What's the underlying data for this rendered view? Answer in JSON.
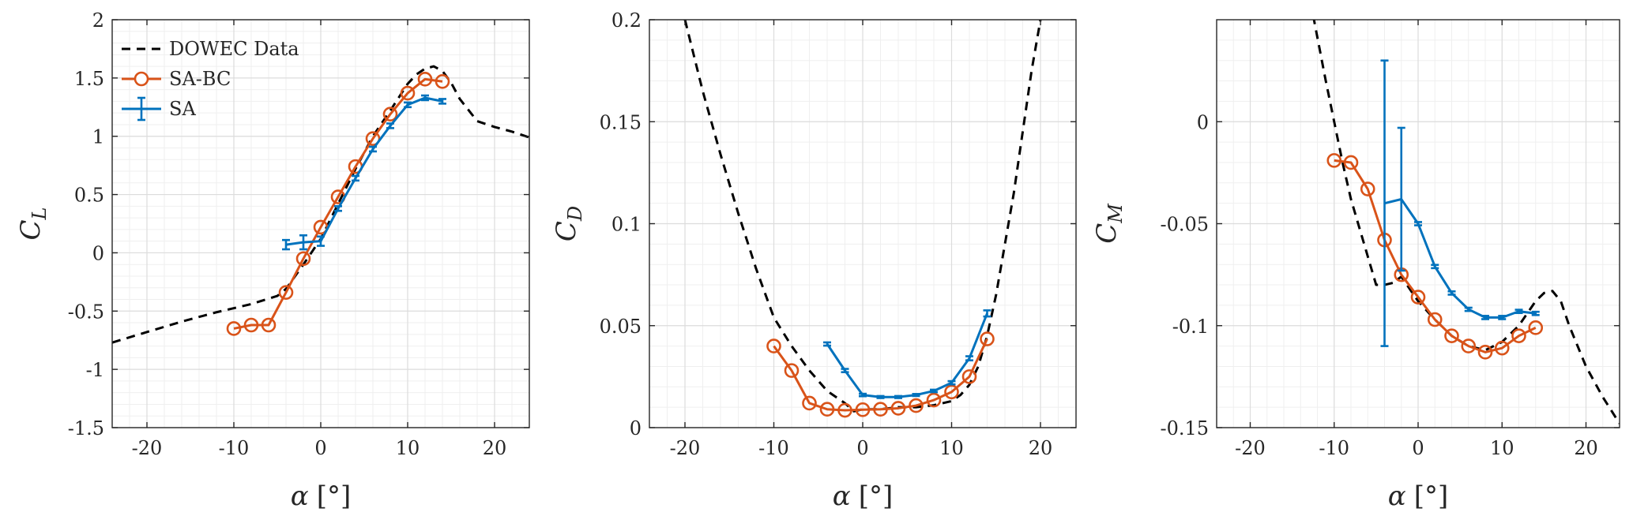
{
  "colors": {
    "dowec": "#000000",
    "sa_bc": "#D95319",
    "sa": "#0072BD",
    "grid_minor": "#efefef",
    "grid_major": "#dcdcdc",
    "axes": "#262626"
  },
  "legend": [
    {
      "name": "DOWEC Data",
      "style": "dashed",
      "color": "#000000"
    },
    {
      "name": "SA-BC",
      "style": "line-circle",
      "color": "#D95319"
    },
    {
      "name": "SA",
      "style": "line-errorbar",
      "color": "#0072BD"
    }
  ],
  "chart_data": [
    {
      "type": "line",
      "xlabel_main": "α",
      "xlabel_unit": "[°]",
      "ylabel_main": "C",
      "ylabel_sub": "L",
      "xlim": [
        -24,
        24
      ],
      "ylim": [
        -1.5,
        2
      ],
      "xticks": [
        -20,
        -10,
        0,
        10,
        20
      ],
      "yticks": [
        -1.5,
        -1,
        -0.5,
        0,
        0.5,
        1,
        1.5,
        2
      ],
      "xtick_labels": [
        "-20",
        "-10",
        "0",
        "10",
        "20"
      ],
      "ytick_labels": [
        "-1.5",
        "-1",
        "-0.5",
        "0",
        "0.5",
        "1",
        "1.5",
        "2"
      ],
      "xminor_step": 2,
      "yminor_step": 0.1,
      "grid": true,
      "legend_location": "top-left",
      "series": [
        {
          "name": "DOWEC Data",
          "style": "dashed",
          "x": [
            -24,
            -20,
            -16,
            -12,
            -8,
            -5,
            -4,
            -2,
            0,
            2,
            4,
            6,
            8,
            10,
            11,
            12,
            13,
            14,
            15,
            16,
            18,
            20,
            22,
            24
          ],
          "y": [
            -0.77,
            -0.68,
            -0.59,
            -0.51,
            -0.44,
            -0.37,
            -0.31,
            -0.1,
            0.12,
            0.42,
            0.72,
            1.0,
            1.22,
            1.45,
            1.53,
            1.58,
            1.6,
            1.56,
            1.46,
            1.32,
            1.13,
            1.08,
            1.04,
            0.99
          ]
        },
        {
          "name": "SA-BC",
          "style": "line-circle",
          "x": [
            -10,
            -8,
            -6,
            -4,
            -2,
            0,
            2,
            4,
            6,
            8,
            10,
            12,
            14
          ],
          "y": [
            -0.65,
            -0.62,
            -0.62,
            -0.34,
            -0.05,
            0.22,
            0.48,
            0.74,
            0.98,
            1.19,
            1.37,
            1.49,
            1.47
          ]
        },
        {
          "name": "SA",
          "style": "line-errorbar",
          "x": [
            -4,
            -2,
            0,
            2,
            4,
            6,
            8,
            10,
            12,
            14
          ],
          "y": [
            0.07,
            0.09,
            0.1,
            0.38,
            0.64,
            0.89,
            1.09,
            1.27,
            1.33,
            1.3
          ],
          "err": [
            0.04,
            0.06,
            0.04,
            0.02,
            0.02,
            0.02,
            0.02,
            0.02,
            0.02,
            0.02
          ]
        }
      ]
    },
    {
      "type": "line",
      "xlabel_main": "α",
      "xlabel_unit": "[°]",
      "ylabel_main": "C",
      "ylabel_sub": "D",
      "xlim": [
        -24,
        24
      ],
      "ylim": [
        0,
        0.2
      ],
      "xticks": [
        -20,
        -10,
        0,
        10,
        20
      ],
      "yticks": [
        0,
        0.05,
        0.1,
        0.15,
        0.2
      ],
      "xtick_labels": [
        "-20",
        "-10",
        "0",
        "10",
        "20"
      ],
      "ytick_labels": [
        "0",
        "0.05",
        "0.1",
        "0.15",
        "0.2"
      ],
      "xminor_step": 2,
      "yminor_step": 0.01,
      "grid": true,
      "series": [
        {
          "name": "DOWEC Data",
          "style": "dashed",
          "x": [
            -20,
            -18,
            -16,
            -14,
            -12,
            -10,
            -8,
            -6,
            -4,
            -2,
            -1,
            0,
            2,
            4,
            6,
            8,
            10,
            11,
            12,
            13,
            14,
            15,
            16,
            17,
            18,
            19,
            20
          ],
          "y": [
            0.2,
            0.165,
            0.134,
            0.105,
            0.078,
            0.054,
            0.04,
            0.028,
            0.018,
            0.012,
            0.008,
            0.009,
            0.009,
            0.01,
            0.01,
            0.011,
            0.013,
            0.016,
            0.021,
            0.03,
            0.045,
            0.065,
            0.09,
            0.115,
            0.145,
            0.175,
            0.2
          ]
        },
        {
          "name": "SA-BC",
          "style": "line-circle",
          "x": [
            -10,
            -8,
            -6,
            -4,
            -2,
            0,
            2,
            4,
            6,
            8,
            10,
            12,
            14
          ],
          "y": [
            0.04,
            0.028,
            0.012,
            0.009,
            0.0085,
            0.0088,
            0.009,
            0.0095,
            0.0108,
            0.0135,
            0.0175,
            0.025,
            0.0435
          ]
        },
        {
          "name": "SA",
          "style": "line-errorbar",
          "x": [
            -4,
            -2,
            0,
            2,
            4,
            6,
            8,
            10,
            12,
            14
          ],
          "y": [
            0.041,
            0.028,
            0.016,
            0.015,
            0.015,
            0.016,
            0.018,
            0.022,
            0.034,
            0.056
          ],
          "err": [
            0.0008,
            0.0008,
            0.0006,
            0.0005,
            0.0005,
            0.0005,
            0.0006,
            0.0008,
            0.001,
            0.0015
          ]
        }
      ]
    },
    {
      "type": "line",
      "xlabel_main": "α",
      "xlabel_unit": "[°]",
      "ylabel_main": "C",
      "ylabel_sub": "M",
      "xlim": [
        -24,
        24
      ],
      "ylim": [
        -0.15,
        0.05
      ],
      "xticks": [
        -20,
        -10,
        0,
        10,
        20
      ],
      "yticks": [
        -0.15,
        -0.1,
        -0.05,
        0
      ],
      "xtick_labels": [
        "-20",
        "-10",
        "0",
        "10",
        "20"
      ],
      "ytick_labels": [
        "-0.15",
        "-0.1",
        "-0.05",
        "0"
      ],
      "xminor_step": 2,
      "yminor_step": 0.01,
      "grid": true,
      "series": [
        {
          "name": "DOWEC Data",
          "style": "dashed",
          "x": [
            -12.5,
            -11,
            -10,
            -9,
            -8,
            -7,
            -6,
            -5,
            -4.5,
            -4,
            -3,
            -2,
            0,
            2,
            4,
            6,
            8,
            10,
            12,
            14,
            15,
            16,
            17,
            18,
            19,
            20,
            22,
            24
          ],
          "y": [
            0.052,
            0.02,
            0.0,
            -0.02,
            -0.038,
            -0.052,
            -0.066,
            -0.08,
            -0.08,
            -0.08,
            -0.079,
            -0.076,
            -0.088,
            -0.097,
            -0.105,
            -0.11,
            -0.112,
            -0.108,
            -0.1,
            -0.088,
            -0.084,
            -0.083,
            -0.088,
            -0.1,
            -0.11,
            -0.12,
            -0.135,
            -0.148
          ]
        },
        {
          "name": "SA-BC",
          "style": "line-circle",
          "x": [
            -10,
            -8,
            -6,
            -4,
            -2,
            0,
            2,
            4,
            6,
            8,
            10,
            12,
            14
          ],
          "y": [
            -0.019,
            -0.02,
            -0.033,
            -0.058,
            -0.075,
            -0.086,
            -0.097,
            -0.105,
            -0.11,
            -0.113,
            -0.111,
            -0.105,
            -0.101
          ]
        },
        {
          "name": "SA",
          "style": "line-errorbar",
          "x": [
            -4,
            -2,
            0,
            2,
            4,
            6,
            8,
            10,
            12,
            14
          ],
          "y": [
            -0.04,
            -0.038,
            -0.05,
            -0.071,
            -0.084,
            -0.092,
            -0.096,
            -0.096,
            -0.093,
            -0.094
          ],
          "err": [
            0.07,
            0.035,
            0.0008,
            0.0008,
            0.0008,
            0.0008,
            0.0008,
            0.0008,
            0.0008,
            0.0008
          ]
        }
      ]
    }
  ]
}
